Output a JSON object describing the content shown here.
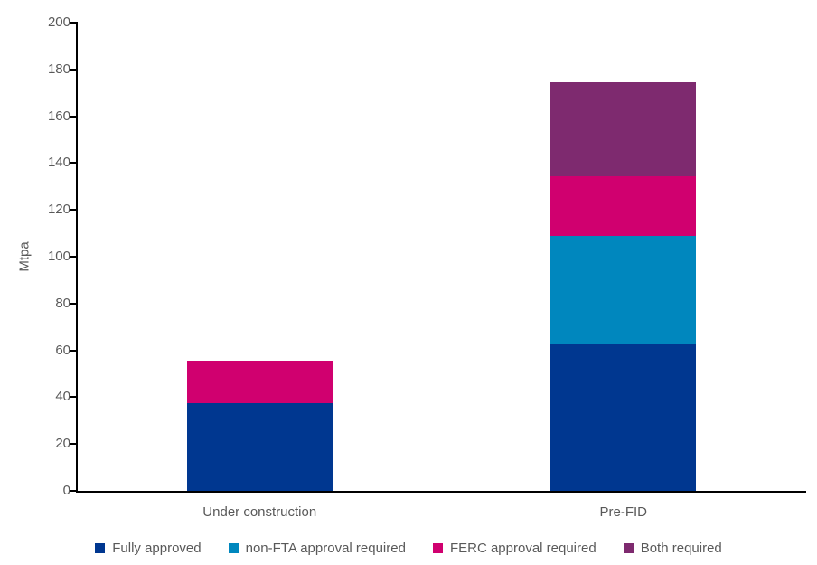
{
  "chart_data": {
    "type": "bar",
    "stacked": true,
    "title": "",
    "xlabel": "",
    "ylabel": "Mtpa",
    "ylim": [
      0,
      200
    ],
    "ytick_step": 20,
    "grid": false,
    "legend_position": "bottom",
    "categories": [
      "Under construction",
      "Pre-FID"
    ],
    "series": [
      {
        "name": "Fully approved",
        "color": "#003790",
        "values": [
          37.5,
          63
        ]
      },
      {
        "name": "non-FTA approval required",
        "color": "#0087BE",
        "values": [
          0,
          46
        ]
      },
      {
        "name": "FERC approval required",
        "color": "#D0006F",
        "values": [
          18,
          25.5
        ]
      },
      {
        "name": "Both required",
        "color": "#7E2A6F",
        "values": [
          0,
          40
        ]
      }
    ],
    "totals": [
      55.5,
      174.5
    ]
  },
  "colors": {
    "axis": "#000000",
    "text": "#595959",
    "background": "#FFFFFF"
  }
}
